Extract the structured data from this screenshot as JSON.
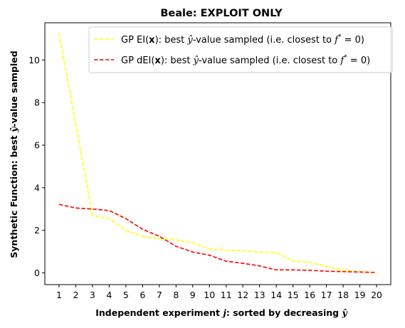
{
  "chart_data": {
    "type": "line",
    "title": "Beale: EXPLOIT ONLY",
    "xlabel": "Independent experiment j: sorted by decreasing ŷ",
    "ylabel": "Synthetic Function: best ŷ-value sampled",
    "x": [
      1,
      2,
      3,
      4,
      5,
      6,
      7,
      8,
      9,
      10,
      11,
      12,
      13,
      14,
      15,
      16,
      17,
      18,
      19,
      20
    ],
    "xlim": [
      0.15,
      20.85
    ],
    "ylim": [
      -0.55,
      11.75
    ],
    "yticks": [
      0,
      2,
      4,
      6,
      8,
      10
    ],
    "grid": false,
    "legend_position": "top-right",
    "series": [
      {
        "name": "GP EI(x):   best ŷ-value sampled (i.e. closest to f* = 0)",
        "color": "#ffff00",
        "style": "dashed",
        "values": [
          11.25,
          7.0,
          2.7,
          2.55,
          2.0,
          1.72,
          1.62,
          1.55,
          1.42,
          1.12,
          1.07,
          1.05,
          0.97,
          0.96,
          0.56,
          0.5,
          0.3,
          0.12,
          0.05,
          0.02
        ]
      },
      {
        "name": "GP dEI(x): best ŷ-value sampled (i.e. closest to f* = 0)",
        "color": "#ff0000",
        "style": "dashed",
        "values": [
          3.22,
          3.05,
          3.0,
          2.93,
          2.55,
          2.05,
          1.72,
          1.25,
          0.98,
          0.83,
          0.55,
          0.45,
          0.33,
          0.14,
          0.14,
          0.12,
          0.08,
          0.06,
          0.04,
          0.02
        ]
      }
    ]
  }
}
